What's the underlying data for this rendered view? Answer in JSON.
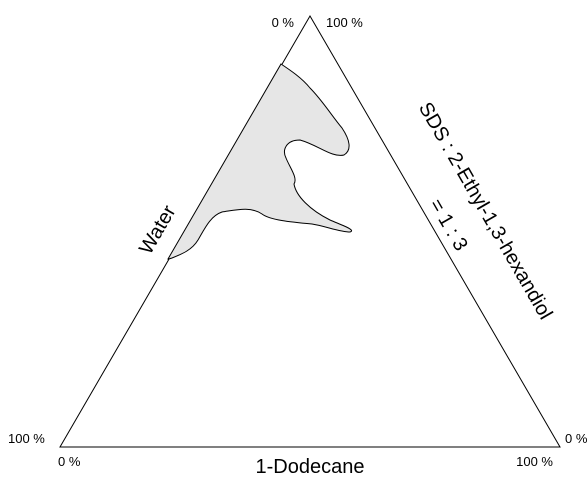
{
  "diagram": {
    "type": "ternary-phase-diagram",
    "axes": {
      "left_edge": {
        "label": "Water",
        "start": "0 %",
        "end": "100 %"
      },
      "right_edge": {
        "label_line1": "SDS : 2-Ethyl-1,3-hexandiol",
        "label_line2": "= 1 : 3",
        "start": "100 %",
        "end": "0 %"
      },
      "bottom_edge": {
        "label": "1-Dodecane",
        "start": "0 %",
        "end": "100 %"
      }
    },
    "corner_ticks": {
      "top_left": "0 %",
      "top_right": "100 %",
      "bottom_left_outer": "100 %",
      "bottom_left_inner": "0 %",
      "bottom_right_outer": "0 %",
      "bottom_right_inner": "100 %"
    },
    "colors": {
      "region_fill": "#e6e6e6",
      "outline": "#000000",
      "background": "#ffffff"
    }
  }
}
